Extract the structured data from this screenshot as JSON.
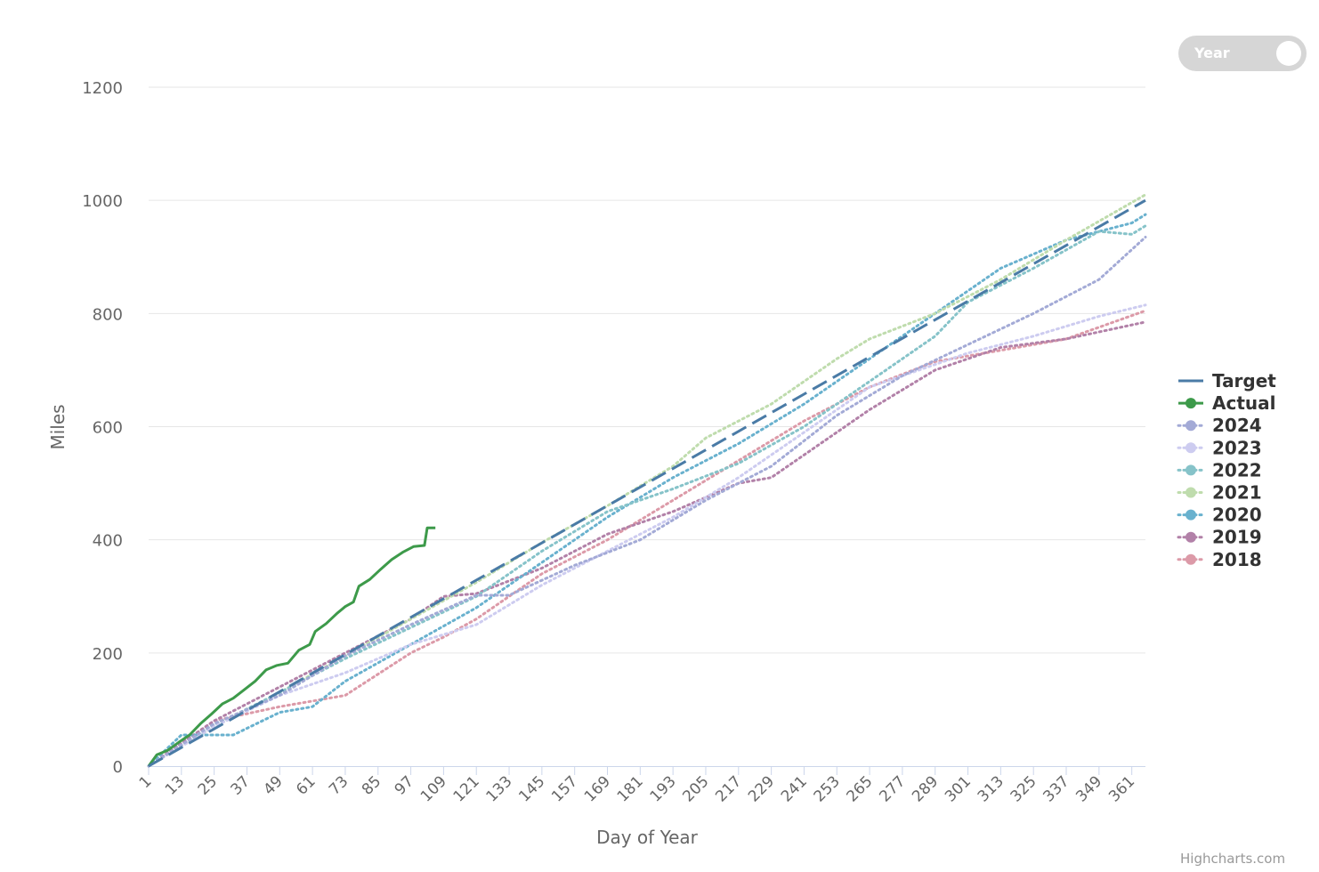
{
  "toggle": {
    "label": "Year",
    "checked": true
  },
  "credits": "Highcharts.com",
  "colors": {
    "Target": "#4a7ba6",
    "Actual": "#3d9a4a",
    "2024": "#a3aad6",
    "2023": "#cdccf0",
    "2022": "#86c3c9",
    "2021": "#bfdcad",
    "2020": "#69b1ce",
    "2019": "#b281a8",
    "2018": "#dc9aa8"
  },
  "chart_data": {
    "type": "line",
    "title": "",
    "xlabel": "Day of Year",
    "ylabel": "Miles",
    "xlim": [
      1,
      366
    ],
    "ylim": [
      0,
      1200
    ],
    "yticks": [
      0,
      200,
      400,
      600,
      800,
      1000,
      1200
    ],
    "xticks": [
      1,
      13,
      25,
      37,
      49,
      61,
      73,
      85,
      97,
      109,
      121,
      133,
      145,
      157,
      169,
      181,
      193,
      205,
      217,
      229,
      241,
      253,
      265,
      277,
      289,
      301,
      313,
      325,
      337,
      349,
      361
    ],
    "grid": true,
    "legend_position": "right",
    "series": [
      {
        "name": "Target",
        "style": "dashed",
        "points": [
          [
            1,
            0
          ],
          [
            366,
            1000
          ]
        ]
      },
      {
        "name": "Actual",
        "style": "solid",
        "points": [
          [
            1,
            0
          ],
          [
            4,
            20
          ],
          [
            8,
            28
          ],
          [
            12,
            42
          ],
          [
            16,
            55
          ],
          [
            20,
            75
          ],
          [
            24,
            92
          ],
          [
            28,
            110
          ],
          [
            32,
            120
          ],
          [
            36,
            135
          ],
          [
            40,
            150
          ],
          [
            44,
            170
          ],
          [
            48,
            178
          ],
          [
            52,
            182
          ],
          [
            56,
            205
          ],
          [
            60,
            215
          ],
          [
            62,
            238
          ],
          [
            66,
            252
          ],
          [
            70,
            270
          ],
          [
            73,
            282
          ],
          [
            76,
            290
          ],
          [
            78,
            318
          ],
          [
            82,
            330
          ],
          [
            86,
            348
          ],
          [
            90,
            365
          ],
          [
            94,
            378
          ],
          [
            98,
            388
          ],
          [
            102,
            390
          ],
          [
            103,
            421
          ],
          [
            106,
            421
          ]
        ]
      },
      {
        "name": "2024",
        "style": "dotted",
        "points": [
          [
            1,
            0
          ],
          [
            25,
            75
          ],
          [
            49,
            125
          ],
          [
            73,
            195
          ],
          [
            97,
            250
          ],
          [
            121,
            302
          ],
          [
            133,
            302
          ],
          [
            157,
            355
          ],
          [
            181,
            400
          ],
          [
            205,
            470
          ],
          [
            229,
            530
          ],
          [
            253,
            620
          ],
          [
            277,
            690
          ],
          [
            301,
            745
          ],
          [
            325,
            800
          ],
          [
            349,
            860
          ],
          [
            366,
            935
          ]
        ]
      },
      {
        "name": "2023",
        "style": "dotted",
        "points": [
          [
            1,
            0
          ],
          [
            25,
            70
          ],
          [
            49,
            125
          ],
          [
            73,
            165
          ],
          [
            97,
            215
          ],
          [
            121,
            250
          ],
          [
            145,
            320
          ],
          [
            169,
            380
          ],
          [
            193,
            440
          ],
          [
            217,
            510
          ],
          [
            241,
            590
          ],
          [
            265,
            670
          ],
          [
            289,
            710
          ],
          [
            301,
            730
          ],
          [
            325,
            760
          ],
          [
            349,
            795
          ],
          [
            366,
            815
          ]
        ]
      },
      {
        "name": "2022",
        "style": "dotted",
        "points": [
          [
            1,
            0
          ],
          [
            25,
            72
          ],
          [
            49,
            130
          ],
          [
            73,
            190
          ],
          [
            97,
            245
          ],
          [
            121,
            300
          ],
          [
            145,
            380
          ],
          [
            169,
            450
          ],
          [
            193,
            490
          ],
          [
            217,
            535
          ],
          [
            241,
            600
          ],
          [
            265,
            680
          ],
          [
            289,
            760
          ],
          [
            301,
            820
          ],
          [
            325,
            880
          ],
          [
            349,
            945
          ],
          [
            361,
            940
          ],
          [
            366,
            955
          ]
        ]
      },
      {
        "name": "2021",
        "style": "dotted",
        "points": [
          [
            1,
            0
          ],
          [
            25,
            70
          ],
          [
            49,
            130
          ],
          [
            73,
            195
          ],
          [
            97,
            260
          ],
          [
            121,
            325
          ],
          [
            145,
            395
          ],
          [
            169,
            460
          ],
          [
            193,
            530
          ],
          [
            205,
            580
          ],
          [
            229,
            640
          ],
          [
            253,
            720
          ],
          [
            265,
            755
          ],
          [
            289,
            800
          ],
          [
            313,
            860
          ],
          [
            337,
            930
          ],
          [
            366,
            1010
          ]
        ]
      },
      {
        "name": "2020",
        "style": "dotted",
        "points": [
          [
            1,
            0
          ],
          [
            13,
            55
          ],
          [
            32,
            55
          ],
          [
            49,
            95
          ],
          [
            61,
            105
          ],
          [
            73,
            150
          ],
          [
            97,
            215
          ],
          [
            121,
            280
          ],
          [
            145,
            360
          ],
          [
            169,
            440
          ],
          [
            193,
            510
          ],
          [
            217,
            570
          ],
          [
            241,
            640
          ],
          [
            265,
            720
          ],
          [
            289,
            800
          ],
          [
            313,
            880
          ],
          [
            337,
            930
          ],
          [
            361,
            960
          ],
          [
            366,
            975
          ]
        ]
      },
      {
        "name": "2019",
        "style": "dotted",
        "points": [
          [
            1,
            0
          ],
          [
            25,
            80
          ],
          [
            49,
            140
          ],
          [
            73,
            200
          ],
          [
            97,
            260
          ],
          [
            109,
            300
          ],
          [
            121,
            305
          ],
          [
            145,
            350
          ],
          [
            169,
            410
          ],
          [
            193,
            450
          ],
          [
            217,
            500
          ],
          [
            229,
            510
          ],
          [
            241,
            550
          ],
          [
            265,
            630
          ],
          [
            289,
            700
          ],
          [
            313,
            740
          ],
          [
            337,
            755
          ],
          [
            366,
            785
          ]
        ]
      },
      {
        "name": "2018",
        "style": "dotted",
        "points": [
          [
            1,
            0
          ],
          [
            25,
            80
          ],
          [
            49,
            105
          ],
          [
            73,
            125
          ],
          [
            97,
            200
          ],
          [
            109,
            228
          ],
          [
            121,
            260
          ],
          [
            145,
            340
          ],
          [
            169,
            400
          ],
          [
            193,
            470
          ],
          [
            217,
            540
          ],
          [
            241,
            610
          ],
          [
            265,
            670
          ],
          [
            289,
            715
          ],
          [
            313,
            735
          ],
          [
            337,
            755
          ],
          [
            366,
            805
          ]
        ]
      }
    ]
  }
}
